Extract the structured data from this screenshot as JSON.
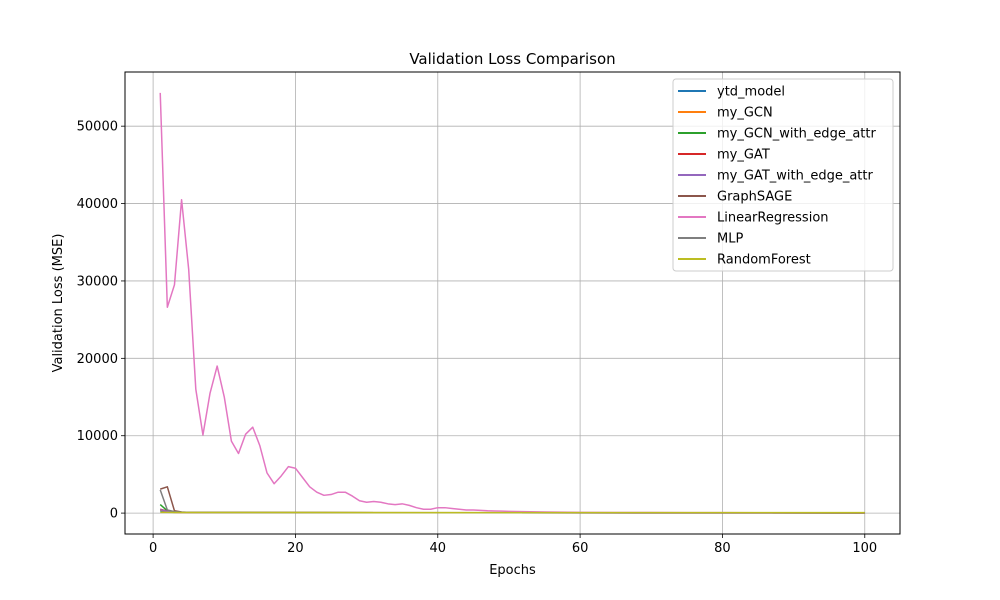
{
  "chart_data": {
    "type": "line",
    "title": "Validation Loss Comparison",
    "xlabel": "Epochs",
    "ylabel": "Validation Loss (MSE)",
    "xlim": [
      -3.95,
      104.95
    ],
    "ylim": [
      -2700,
      57000
    ],
    "xticks": [
      0,
      20,
      40,
      60,
      80,
      100
    ],
    "yticks": [
      0,
      10000,
      20000,
      30000,
      40000,
      50000
    ],
    "grid": true,
    "legend_position": "top-right",
    "series": [
      {
        "name": "ytd_model",
        "color": "#1f77b4",
        "x": [
          1,
          2,
          3,
          5,
          10,
          20,
          50,
          100
        ],
        "y": [
          300,
          150,
          90,
          70,
          60,
          50,
          40,
          30
        ]
      },
      {
        "name": "my_GCN",
        "color": "#ff7f0e",
        "x": [
          1,
          2,
          3,
          5,
          10,
          20,
          50,
          100
        ],
        "y": [
          400,
          200,
          100,
          80,
          70,
          60,
          45,
          35
        ]
      },
      {
        "name": "my_GCN_with_edge_attr",
        "color": "#2ca02c",
        "x": [
          1,
          2,
          3,
          5,
          10,
          20,
          50,
          100
        ],
        "y": [
          1100,
          300,
          120,
          90,
          75,
          60,
          45,
          35
        ]
      },
      {
        "name": "my_GAT",
        "color": "#d62728",
        "x": [
          1,
          2,
          3,
          5,
          10,
          20,
          50,
          100
        ],
        "y": [
          500,
          250,
          110,
          85,
          70,
          55,
          40,
          30
        ]
      },
      {
        "name": "my_GAT_with_edge_attr",
        "color": "#9467bd",
        "x": [
          1,
          2,
          3,
          5,
          10,
          20,
          50,
          100
        ],
        "y": [
          450,
          220,
          100,
          80,
          65,
          55,
          40,
          30
        ]
      },
      {
        "name": "GraphSAGE",
        "color": "#8c564b",
        "x": [
          1,
          2,
          3,
          4,
          5,
          10,
          20,
          50,
          100
        ],
        "y": [
          3100,
          3400,
          300,
          150,
          100,
          80,
          65,
          45,
          35
        ]
      },
      {
        "name": "LinearRegression",
        "color": "#e377c2",
        "x": [
          1,
          2,
          3,
          4,
          5,
          6,
          7,
          8,
          9,
          10,
          11,
          12,
          13,
          14,
          15,
          16,
          17,
          18,
          19,
          20,
          21,
          22,
          23,
          24,
          25,
          26,
          27,
          28,
          29,
          30,
          31,
          32,
          33,
          34,
          35,
          36,
          37,
          38,
          39,
          40,
          41,
          42,
          43,
          44,
          45,
          46,
          47,
          48,
          49,
          50,
          55,
          60,
          65,
          70,
          75,
          80,
          85,
          90,
          95,
          100
        ],
        "y": [
          54300,
          26600,
          29500,
          40500,
          31500,
          16000,
          10100,
          15500,
          19000,
          15000,
          9300,
          7700,
          10200,
          11100,
          8700,
          5200,
          3800,
          4800,
          6000,
          5800,
          4600,
          3400,
          2700,
          2300,
          2400,
          2700,
          2700,
          2200,
          1600,
          1400,
          1500,
          1400,
          1200,
          1100,
          1200,
          1000,
          700,
          500,
          500,
          700,
          700,
          600,
          500,
          400,
          400,
          350,
          300,
          280,
          250,
          220,
          150,
          100,
          80,
          70,
          60,
          55,
          50,
          45,
          40,
          35
        ]
      },
      {
        "name": "MLP",
        "color": "#7f7f7f",
        "x": [
          1,
          2,
          3,
          4,
          5,
          10,
          20,
          50,
          100
        ],
        "y": [
          3000,
          400,
          200,
          120,
          90,
          70,
          60,
          45,
          35
        ]
      },
      {
        "name": "RandomForest",
        "color": "#bcbd22",
        "x": [
          1,
          2,
          3,
          5,
          10,
          20,
          50,
          100
        ],
        "y": [
          100,
          90,
          85,
          80,
          75,
          70,
          65,
          60
        ]
      }
    ]
  }
}
